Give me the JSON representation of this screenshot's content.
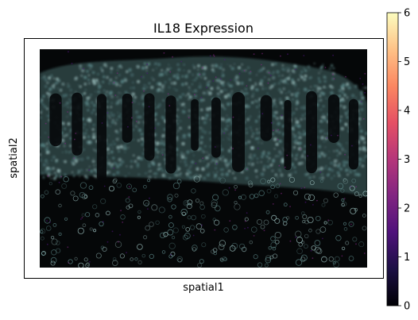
{
  "chart_data": {
    "type": "heatmap",
    "title": "IL18 Expression",
    "xlabel": "spatial1",
    "ylabel": "spatial2",
    "colorbar": {
      "colormap": "magma",
      "vmin": 0,
      "vmax": 6,
      "ticks": [
        0,
        1,
        2,
        3,
        4,
        5,
        6
      ],
      "colors": [
        "#000004",
        "#1c1044",
        "#4f127b",
        "#812581",
        "#b5367a",
        "#e55064",
        "#fb8761",
        "#fec287",
        "#fcfdbf"
      ]
    },
    "image_description_colors": {
      "background": "#050708",
      "tissue": "#5f8c8c",
      "tissue_bright": "#9fc4c2"
    },
    "xticks_visible": false,
    "yticks_visible": false
  }
}
